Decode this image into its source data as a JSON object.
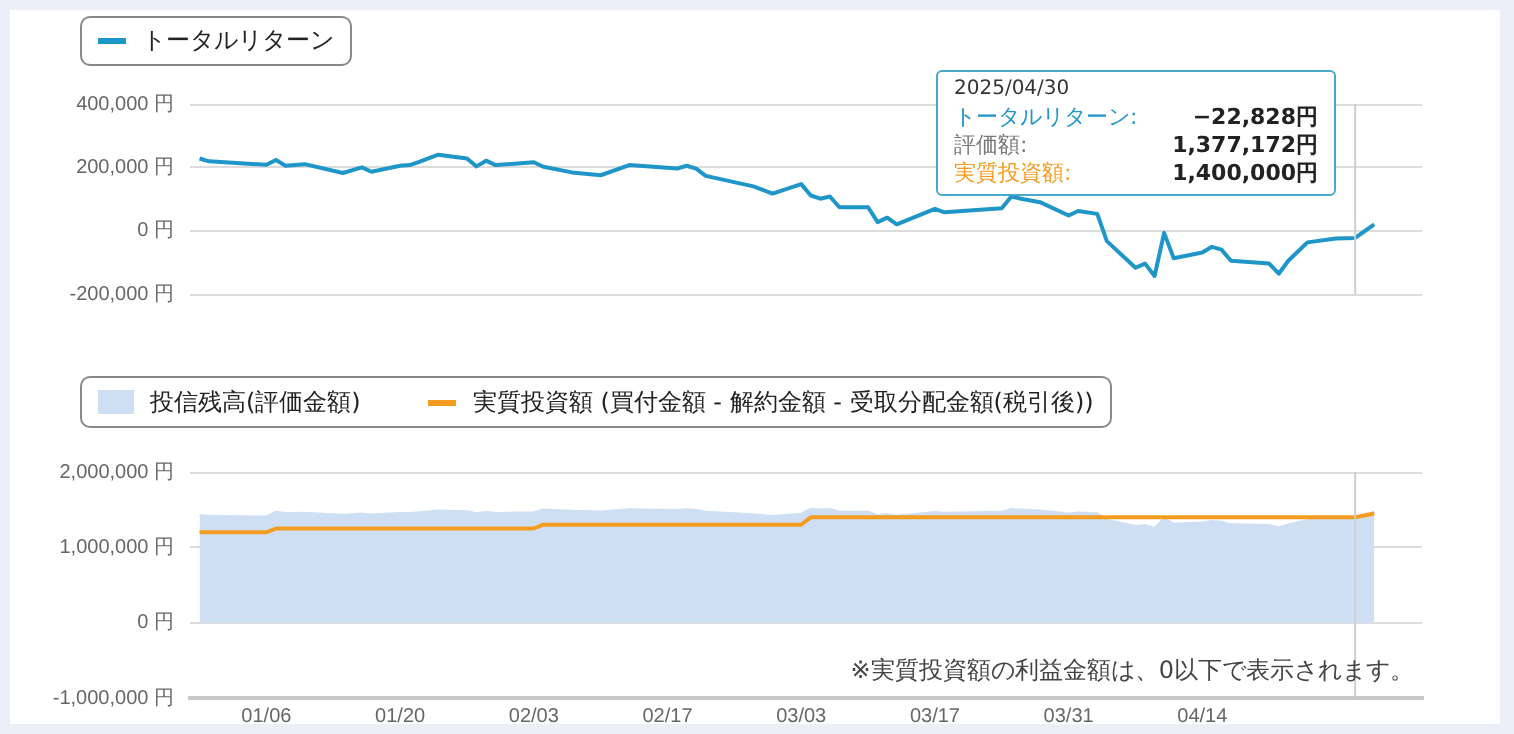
{
  "chart_data": [
    {
      "type": "line",
      "x": [
        "2024-12-30",
        "2024-12-31",
        "2025-01-06",
        "2025-01-07",
        "2025-01-08",
        "2025-01-10",
        "2025-01-14",
        "2025-01-16",
        "2025-01-17",
        "2025-01-20",
        "2025-01-21",
        "2025-01-22",
        "2025-01-24",
        "2025-01-27",
        "2025-01-28",
        "2025-01-29",
        "2025-01-30",
        "2025-02-03",
        "2025-02-04",
        "2025-02-07",
        "2025-02-10",
        "2025-02-13",
        "2025-02-18",
        "2025-02-19",
        "2025-02-20",
        "2025-02-21",
        "2025-02-26",
        "2025-02-28",
        "2025-03-03",
        "2025-03-04",
        "2025-03-05",
        "2025-03-06",
        "2025-03-07",
        "2025-03-10",
        "2025-03-11",
        "2025-03-12",
        "2025-03-13",
        "2025-03-17",
        "2025-03-18",
        "2025-03-24",
        "2025-03-25",
        "2025-03-26",
        "2025-03-28",
        "2025-03-31",
        "2025-04-01",
        "2025-04-03",
        "2025-04-04",
        "2025-04-07",
        "2025-04-08",
        "2025-04-09",
        "2025-04-10",
        "2025-04-11",
        "2025-04-14",
        "2025-04-15",
        "2025-04-16",
        "2025-04-17",
        "2025-04-21",
        "2025-04-22",
        "2025-04-23",
        "2025-04-25",
        "2025-04-28",
        "2025-04-30",
        "2025-05-02"
      ],
      "series": [
        {
          "name": "トータルリターン",
          "color": "#1e96c8",
          "values": [
            228000,
            219000,
            208000,
            223000,
            205000,
            210000,
            182000,
            200000,
            186000,
            205000,
            207000,
            217000,
            240000,
            228000,
            203000,
            221000,
            207000,
            216000,
            202000,
            184000,
            175000,
            207000,
            196000,
            205000,
            196000,
            173000,
            140000,
            117000,
            147000,
            111000,
            101000,
            108000,
            74000,
            74000,
            27000,
            41000,
            20000,
            69000,
            58000,
            71000,
            108000,
            101000,
            90000,
            48000,
            62000,
            53000,
            -33000,
            -117000,
            -104000,
            -143000,
            -7000,
            -87000,
            -69000,
            -51000,
            -60000,
            -95000,
            -104000,
            -136000,
            -95000,
            -37000,
            -25000,
            -22828,
            20000
          ]
        }
      ],
      "xlim": [
        "2024-12-29",
        "2025-05-07"
      ],
      "ylim": [
        -200000,
        400000
      ],
      "yticks": [
        {
          "value": -200000,
          "label": "-200,000 円"
        },
        {
          "value": 0,
          "label": "0 円"
        },
        {
          "value": 200000,
          "label": "200,000 円"
        },
        {
          "value": 400000,
          "label": "400,000 円"
        }
      ],
      "tick_labels": "y",
      "grid": "y",
      "legend": "top left",
      "ref_lines": [
        {
          "axis": "x",
          "value": "2025-04-30"
        }
      ]
    },
    {
      "type": "area",
      "x": [
        "2024-12-30",
        "2024-12-31",
        "2025-01-06",
        "2025-01-07",
        "2025-01-08",
        "2025-01-10",
        "2025-01-14",
        "2025-01-16",
        "2025-01-17",
        "2025-01-20",
        "2025-01-21",
        "2025-01-22",
        "2025-01-24",
        "2025-01-27",
        "2025-01-28",
        "2025-01-29",
        "2025-01-30",
        "2025-02-03",
        "2025-02-04",
        "2025-02-07",
        "2025-02-10",
        "2025-02-13",
        "2025-02-18",
        "2025-02-19",
        "2025-02-20",
        "2025-02-21",
        "2025-02-26",
        "2025-02-28",
        "2025-03-03",
        "2025-03-04",
        "2025-03-05",
        "2025-03-06",
        "2025-03-07",
        "2025-03-10",
        "2025-03-11",
        "2025-03-12",
        "2025-03-13",
        "2025-03-17",
        "2025-03-18",
        "2025-03-24",
        "2025-03-25",
        "2025-03-26",
        "2025-03-28",
        "2025-03-31",
        "2025-04-01",
        "2025-04-03",
        "2025-04-04",
        "2025-04-07",
        "2025-04-08",
        "2025-04-09",
        "2025-04-10",
        "2025-04-11",
        "2025-04-14",
        "2025-04-15",
        "2025-04-16",
        "2025-04-17",
        "2025-04-21",
        "2025-04-22",
        "2025-04-23",
        "2025-04-25",
        "2025-04-28",
        "2025-04-30",
        "2025-05-02"
      ],
      "series": [
        {
          "name": "投信残高(評価金額)",
          "color": "#cfdff3",
          "values": [
            1428000,
            1419000,
            1408000,
            1473000,
            1455000,
            1460000,
            1432000,
            1450000,
            1436000,
            1455000,
            1457000,
            1467000,
            1490000,
            1478000,
            1453000,
            1471000,
            1457000,
            1466000,
            1502000,
            1484000,
            1475000,
            1507000,
            1496000,
            1505000,
            1496000,
            1473000,
            1440000,
            1417000,
            1447000,
            1511000,
            1501000,
            1508000,
            1474000,
            1474000,
            1427000,
            1441000,
            1420000,
            1469000,
            1458000,
            1471000,
            1508000,
            1501000,
            1490000,
            1448000,
            1462000,
            1453000,
            1367000,
            1283000,
            1296000,
            1257000,
            1393000,
            1313000,
            1331000,
            1349000,
            1340000,
            1305000,
            1296000,
            1264000,
            1305000,
            1363000,
            1375000,
            1377172,
            1470000
          ]
        },
        {
          "name": "実質投資額 (買付金額 - 解約金額 - 受取分配金額(税引後))",
          "type": "line",
          "color": "#f39c1f",
          "values": [
            1200000,
            1200000,
            1200000,
            1250000,
            1250000,
            1250000,
            1250000,
            1250000,
            1250000,
            1250000,
            1250000,
            1250000,
            1250000,
            1250000,
            1250000,
            1250000,
            1250000,
            1250000,
            1300000,
            1300000,
            1300000,
            1300000,
            1300000,
            1300000,
            1300000,
            1300000,
            1300000,
            1300000,
            1300000,
            1400000,
            1400000,
            1400000,
            1400000,
            1400000,
            1400000,
            1400000,
            1400000,
            1400000,
            1400000,
            1400000,
            1400000,
            1400000,
            1400000,
            1400000,
            1400000,
            1400000,
            1400000,
            1400000,
            1400000,
            1400000,
            1400000,
            1400000,
            1400000,
            1400000,
            1400000,
            1400000,
            1400000,
            1400000,
            1400000,
            1400000,
            1400000,
            1400000,
            1450000
          ]
        }
      ],
      "xlim": [
        "2024-12-29",
        "2025-05-07"
      ],
      "xticks": [
        {
          "value": "2025-01-06",
          "label": "01/06"
        },
        {
          "value": "2025-01-20",
          "label": "01/20"
        },
        {
          "value": "2025-02-03",
          "label": "02/03"
        },
        {
          "value": "2025-02-17",
          "label": "02/17"
        },
        {
          "value": "2025-03-03",
          "label": "03/03"
        },
        {
          "value": "2025-03-17",
          "label": "03/17"
        },
        {
          "value": "2025-03-31",
          "label": "03/31"
        },
        {
          "value": "2025-04-14",
          "label": "04/14"
        }
      ],
      "ylim": [
        -1000000,
        2000000
      ],
      "yticks": [
        {
          "value": -1000000,
          "label": "-1,000,000 円"
        },
        {
          "value": 0,
          "label": "0 円"
        },
        {
          "value": 1000000,
          "label": "1,000,000 円"
        },
        {
          "value": 2000000,
          "label": "2,000,000 円"
        }
      ],
      "grid": "y",
      "legend": "top left",
      "ref_lines": [
        {
          "axis": "x",
          "value": "2025-04-30"
        }
      ],
      "annotations": [
        "2025/04/30",
        "トータルリターン: −22,828円",
        "評価額: 1,377,172円",
        "実質投資額: 1,400,000円",
        "※実質投資額の利益金額は、0以下で表示されます。"
      ]
    }
  ]
}
